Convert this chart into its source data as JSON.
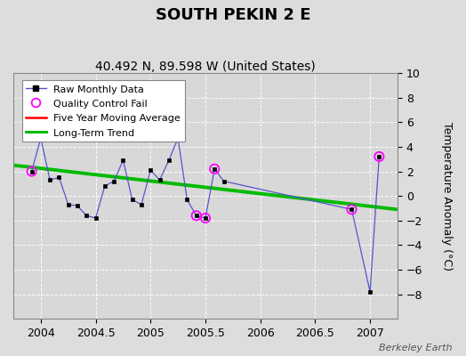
{
  "title": "SOUTH PEKIN 2 E",
  "subtitle": "40.492 N, 89.598 W (United States)",
  "ylabel": "Temperature Anomaly (°C)",
  "watermark": "Berkeley Earth",
  "xlim": [
    2003.75,
    2007.25
  ],
  "ylim": [
    -10,
    10
  ],
  "yticks": [
    -8,
    -6,
    -4,
    -2,
    0,
    2,
    4,
    6,
    8,
    10
  ],
  "xticks": [
    2004,
    2004.5,
    2005,
    2005.5,
    2006,
    2006.5,
    2007
  ],
  "xticklabels": [
    "2004",
    "2004.5",
    "2005",
    "2005.5",
    "2006",
    "2006.5",
    "2007"
  ],
  "bg_color": "#dddddd",
  "plot_bg_color": "#d8d8d8",
  "raw_x": [
    2003.917,
    2004.0,
    2004.083,
    2004.167,
    2004.25,
    2004.333,
    2004.417,
    2004.5,
    2004.583,
    2004.667,
    2004.75,
    2004.833,
    2004.917,
    2005.0,
    2005.083,
    2005.167,
    2005.25,
    2005.333,
    2005.417,
    2005.5,
    2005.583,
    2005.667,
    2006.833,
    2007.0,
    2007.083
  ],
  "raw_y": [
    2.0,
    4.7,
    1.3,
    1.5,
    -0.7,
    -0.8,
    -1.6,
    -1.8,
    0.8,
    1.2,
    2.9,
    -0.3,
    -0.7,
    2.1,
    1.3,
    2.9,
    4.7,
    -0.3,
    -1.6,
    -1.8,
    2.2,
    1.2,
    -1.1,
    -7.8,
    3.2
  ],
  "qc_fail_x": [
    2003.917,
    2005.417,
    2005.5,
    2005.583,
    2006.833,
    2007.083
  ],
  "qc_fail_y": [
    2.0,
    -1.6,
    -1.8,
    2.2,
    -1.1,
    3.2
  ],
  "trend_x": [
    2003.75,
    2007.25
  ],
  "trend_y": [
    2.5,
    -1.1
  ],
  "raw_color": "#5555cc",
  "marker_color": "#000000",
  "qc_color": "#ff00ff",
  "trend_color": "#00bb00",
  "moving_avg_color": "#ff0000",
  "title_fontsize": 13,
  "subtitle_fontsize": 10,
  "tick_fontsize": 9,
  "legend_fontsize": 8
}
